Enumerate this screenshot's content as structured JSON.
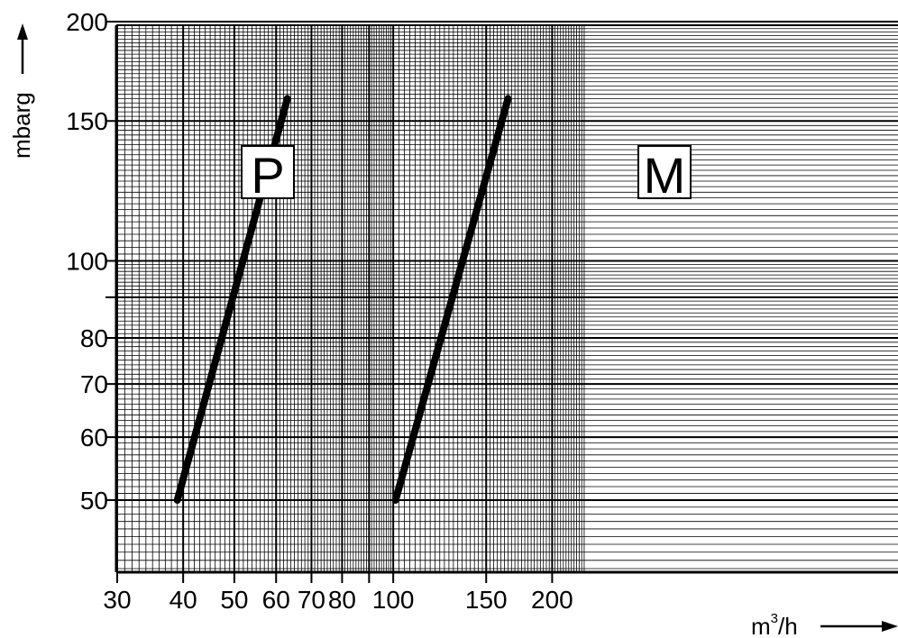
{
  "chart_data": {
    "type": "line",
    "x_scale": "log",
    "y_scale": "log",
    "xlim": [
      30,
      230
    ],
    "ylim": [
      40,
      200
    ],
    "grid": true,
    "xlabel": "m",
    "xlabel_sup": "3",
    "xlabel_suffix": "/h",
    "ylabel": "mbarg",
    "x_ticks": [
      {
        "value": 30,
        "label": "30"
      },
      {
        "value": 40,
        "label": "40"
      },
      {
        "value": 50,
        "label": "50"
      },
      {
        "value": 60,
        "label": "60"
      },
      {
        "value": 70,
        "label": "70"
      },
      {
        "value": 80,
        "label": "80"
      },
      {
        "value": 100,
        "label": "100"
      },
      {
        "value": 150,
        "label": "150"
      },
      {
        "value": 200,
        "label": "200"
      }
    ],
    "y_ticks": [
      {
        "value": 50,
        "label": "50"
      },
      {
        "value": 60,
        "label": "60"
      },
      {
        "value": 70,
        "label": "70"
      },
      {
        "value": 80,
        "label": "80"
      },
      {
        "value": 100,
        "label": "100"
      },
      {
        "value": 150,
        "label": "150"
      },
      {
        "value": 200,
        "label": "200"
      }
    ],
    "series": [
      {
        "name": "P",
        "points": [
          [
            39,
            50
          ],
          [
            63,
            160
          ]
        ]
      },
      {
        "name": "M",
        "points": [
          [
            101,
            50
          ],
          [
            165,
            160
          ]
        ]
      }
    ]
  }
}
